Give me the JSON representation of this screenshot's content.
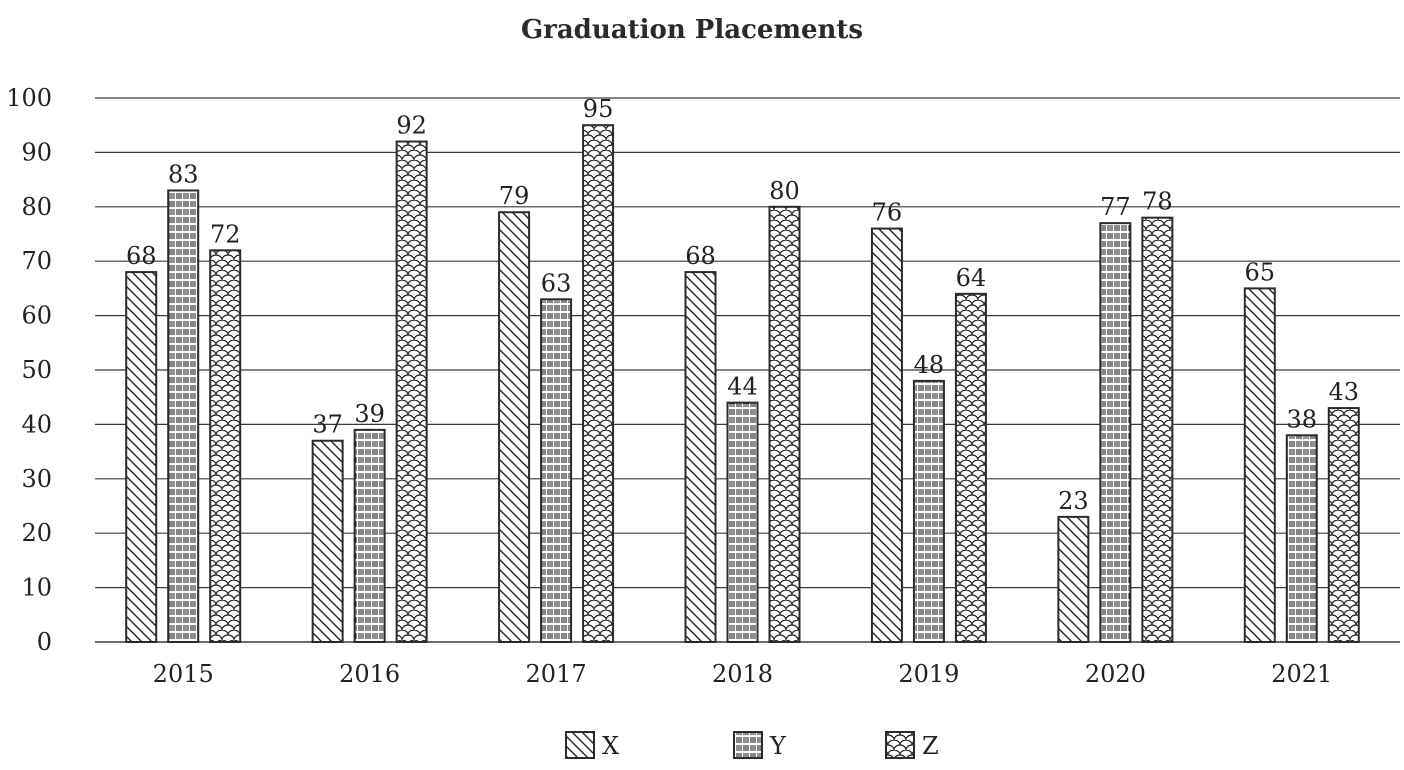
{
  "chart_data": {
    "type": "bar",
    "title": "Graduation Placements",
    "xlabel": "",
    "ylabel": "",
    "categories": [
      "2015",
      "2016",
      "2017",
      "2018",
      "2019",
      "2020",
      "2021"
    ],
    "series": [
      {
        "name": "X",
        "values": [
          68,
          37,
          79,
          68,
          76,
          23,
          65
        ],
        "pattern": "diagonal-hatch"
      },
      {
        "name": "Y",
        "values": [
          83,
          39,
          63,
          44,
          48,
          77,
          38
        ],
        "pattern": "dash-brick"
      },
      {
        "name": "Z",
        "values": [
          72,
          92,
          95,
          80,
          64,
          78,
          43
        ],
        "pattern": "scales"
      }
    ],
    "ylim": [
      0,
      100
    ],
    "yticks": [
      0,
      10,
      20,
      30,
      40,
      50,
      60,
      70,
      80,
      90,
      100
    ],
    "grid": true,
    "legend_position": "bottom-center",
    "colors": {
      "stroke": "#2b2b2b",
      "grid": "#3a3a3a",
      "fill": "#ffffff"
    }
  }
}
